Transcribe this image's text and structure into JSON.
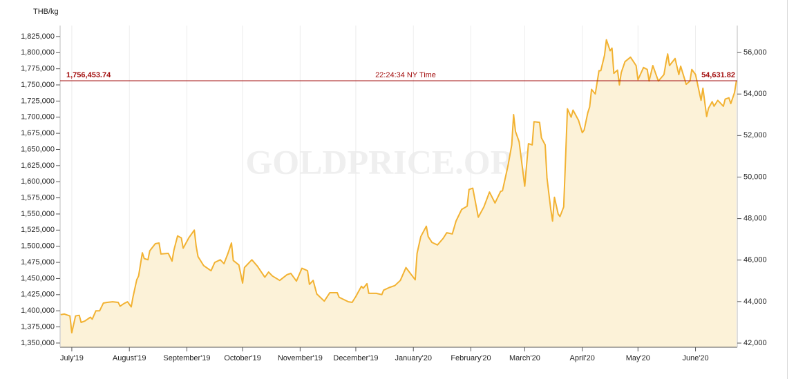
{
  "chart_data": {
    "type": "area",
    "y_unit": "THB/kg",
    "watermark": "GOLDPRICE.ORG",
    "current_price": {
      "value": 1756453.74,
      "label": "1,756,453.74"
    },
    "current_price_y2": {
      "value": 54631.82,
      "label": "54,631.82"
    },
    "time_label": "22:24:34 NY Time",
    "color": "#f2b232",
    "fill_color": "#fcf2d8",
    "price_line_color": "#a30f0f",
    "grid": "x",
    "xlim": [
      -6.3,
      358.5
    ],
    "xticks": [
      {
        "value": 0,
        "label": "July'19"
      },
      {
        "value": 31,
        "label": "August'19"
      },
      {
        "value": 62,
        "label": "September'19"
      },
      {
        "value": 92,
        "label": "October'19"
      },
      {
        "value": 123,
        "label": "November'19"
      },
      {
        "value": 153,
        "label": "December'19"
      },
      {
        "value": 184,
        "label": "January'20"
      },
      {
        "value": 215,
        "label": "February'20"
      },
      {
        "value": 244,
        "label": "March'20"
      },
      {
        "value": 275,
        "label": "April'20"
      },
      {
        "value": 305,
        "label": "May'20"
      },
      {
        "value": 336,
        "label": "June'20"
      }
    ],
    "ylim": [
      1343500,
      1842000
    ],
    "yticks": [
      {
        "value": 1350000,
        "label": "1,350,000"
      },
      {
        "value": 1375000,
        "label": "1,375,000"
      },
      {
        "value": 1400000,
        "label": "1,400,000"
      },
      {
        "value": 1425000,
        "label": "1,425,000"
      },
      {
        "value": 1450000,
        "label": "1,450,000"
      },
      {
        "value": 1475000,
        "label": "1,475,000"
      },
      {
        "value": 1500000,
        "label": "1,500,000"
      },
      {
        "value": 1525000,
        "label": "1,525,000"
      },
      {
        "value": 1550000,
        "label": "1,550,000"
      },
      {
        "value": 1575000,
        "label": "1,575,000"
      },
      {
        "value": 1600000,
        "label": "1,600,000"
      },
      {
        "value": 1625000,
        "label": "1,625,000"
      },
      {
        "value": 1650000,
        "label": "1,650,000"
      },
      {
        "value": 1675000,
        "label": "1,675,000"
      },
      {
        "value": 1700000,
        "label": "1,700,000"
      },
      {
        "value": 1725000,
        "label": "1,725,000"
      },
      {
        "value": 1750000,
        "label": "1,750,000"
      },
      {
        "value": 1775000,
        "label": "1,775,000"
      },
      {
        "value": 1800000,
        "label": "1,800,000"
      },
      {
        "value": 1825000,
        "label": "1,825,000"
      }
    ],
    "y2lim": [
      41800,
      57300
    ],
    "y2ticks": [
      {
        "value": 42000,
        "label": "42,000"
      },
      {
        "value": 44000,
        "label": "44,000"
      },
      {
        "value": 46000,
        "label": "46,000"
      },
      {
        "value": 48000,
        "label": "48,000"
      },
      {
        "value": 50000,
        "label": "50,000"
      },
      {
        "value": 52000,
        "label": "52,000"
      },
      {
        "value": 54000,
        "label": "54,000"
      },
      {
        "value": 56000,
        "label": "56,000"
      }
    ],
    "x": [
      -6,
      -4,
      -1,
      0,
      2,
      4,
      5,
      7,
      10,
      11,
      13,
      15,
      17,
      19,
      22,
      25,
      26,
      28,
      30,
      32,
      33,
      35,
      36,
      38,
      39,
      41,
      42,
      45,
      47,
      48,
      52,
      54,
      55,
      57,
      59,
      60,
      63,
      66,
      67,
      68,
      71,
      75,
      77,
      80,
      82,
      84,
      86,
      87,
      90,
      92,
      93,
      97,
      100,
      104,
      106,
      108,
      112,
      116,
      118,
      121,
      124,
      127,
      128,
      130,
      132,
      136,
      139,
      143,
      144,
      149,
      151,
      153,
      156,
      157,
      159,
      160,
      164,
      167,
      168,
      171,
      174,
      177,
      180,
      185,
      186,
      188,
      191,
      192,
      194,
      197,
      200,
      202,
      205,
      207,
      210,
      213,
      214,
      216,
      219,
      222,
      225,
      228,
      231,
      232,
      235,
      237,
      238,
      239,
      241,
      243,
      244,
      246,
      248,
      249,
      252,
      253,
      255,
      256,
      258,
      259,
      260,
      262,
      263,
      265,
      266,
      267,
      269,
      270,
      273,
      275,
      276,
      278,
      279,
      280,
      282,
      284,
      285,
      287,
      288,
      290,
      291,
      292,
      294,
      295,
      296,
      298,
      301,
      304,
      305,
      308,
      310,
      311,
      313,
      316,
      319,
      320,
      321,
      322,
      325,
      327,
      328,
      331,
      333,
      334,
      336,
      337,
      339,
      340,
      342,
      343,
      345,
      346,
      348,
      349,
      351,
      352,
      354,
      355,
      357,
      358
    ],
    "values": [
      1394000,
      1395000,
      1392000,
      1366000,
      1392000,
      1393000,
      1382000,
      1384000,
      1390000,
      1387000,
      1400000,
      1400000,
      1412000,
      1413000,
      1414000,
      1413000,
      1407000,
      1411000,
      1414000,
      1406000,
      1422000,
      1448000,
      1454000,
      1490000,
      1481000,
      1479000,
      1493000,
      1504000,
      1505000,
      1488000,
      1489000,
      1477000,
      1494000,
      1516000,
      1513000,
      1497000,
      1513000,
      1525000,
      1500000,
      1484000,
      1470000,
      1462000,
      1475000,
      1479000,
      1473000,
      1488000,
      1505000,
      1478000,
      1471000,
      1443000,
      1467000,
      1479000,
      1469000,
      1452000,
      1460000,
      1454000,
      1447000,
      1456000,
      1458000,
      1446000,
      1466000,
      1462000,
      1441000,
      1447000,
      1426000,
      1415000,
      1428000,
      1428000,
      1421000,
      1414000,
      1413000,
      1422000,
      1438000,
      1435000,
      1442000,
      1427000,
      1427000,
      1425000,
      1432000,
      1436000,
      1439000,
      1447000,
      1467000,
      1448000,
      1489000,
      1515000,
      1531000,
      1515000,
      1506000,
      1502000,
      1512000,
      1521000,
      1519000,
      1539000,
      1557000,
      1562000,
      1588000,
      1590000,
      1545000,
      1561000,
      1584000,
      1567000,
      1585000,
      1586000,
      1625000,
      1657000,
      1704000,
      1678000,
      1662000,
      1616000,
      1593000,
      1659000,
      1657000,
      1693000,
      1692000,
      1668000,
      1657000,
      1606000,
      1558000,
      1539000,
      1576000,
      1550000,
      1546000,
      1561000,
      1636000,
      1713000,
      1700000,
      1711000,
      1695000,
      1676000,
      1680000,
      1707000,
      1716000,
      1743000,
      1736000,
      1772000,
      1772000,
      1796000,
      1820000,
      1803000,
      1807000,
      1768000,
      1773000,
      1750000,
      1769000,
      1786000,
      1793000,
      1780000,
      1758000,
      1777000,
      1774000,
      1756000,
      1780000,
      1756000,
      1766000,
      1783000,
      1798000,
      1780000,
      1791000,
      1766000,
      1779000,
      1751000,
      1756000,
      1774000,
      1766000,
      1753000,
      1726000,
      1745000,
      1701000,
      1714000,
      1724000,
      1717000,
      1726000,
      1723000,
      1717000,
      1728000,
      1730000,
      1721000,
      1738000,
      1756000
    ]
  }
}
